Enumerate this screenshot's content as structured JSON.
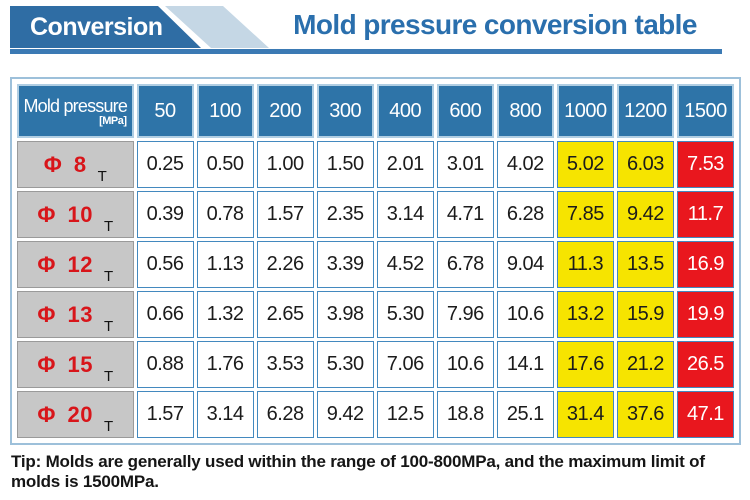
{
  "banner": {
    "label": "Conversion"
  },
  "title": "Mold pressure conversion table",
  "chart_data": {
    "type": "table",
    "title": "Mold pressure conversion table",
    "corner_header": "Mold pressure",
    "corner_unit": "[MPa]",
    "columns": [
      "50",
      "100",
      "200",
      "300",
      "400",
      "600",
      "800",
      "1000",
      "1200",
      "1500"
    ],
    "column_highlight": [
      "plain",
      "plain",
      "plain",
      "plain",
      "plain",
      "plain",
      "plain",
      "yellow",
      "yellow",
      "red"
    ],
    "rows": [
      {
        "label": "Φ 8",
        "unit": "T",
        "values": [
          "0.25",
          "0.50",
          "1.00",
          "1.50",
          "2.01",
          "3.01",
          "4.02",
          "5.02",
          "6.03",
          "7.53"
        ]
      },
      {
        "label": "Φ 10",
        "unit": "T",
        "values": [
          "0.39",
          "0.78",
          "1.57",
          "2.35",
          "3.14",
          "4.71",
          "6.28",
          "7.85",
          "9.42",
          "11.7"
        ]
      },
      {
        "label": "Φ 12",
        "unit": "T",
        "values": [
          "0.56",
          "1.13",
          "2.26",
          "3.39",
          "4.52",
          "6.78",
          "9.04",
          "11.3",
          "13.5",
          "16.9"
        ]
      },
      {
        "label": "Φ 13",
        "unit": "T",
        "values": [
          "0.66",
          "1.32",
          "2.65",
          "3.98",
          "5.30",
          "7.96",
          "10.6",
          "13.2",
          "15.9",
          "19.9"
        ]
      },
      {
        "label": "Φ 15",
        "unit": "T",
        "values": [
          "0.88",
          "1.76",
          "3.53",
          "5.30",
          "7.06",
          "10.6",
          "14.1",
          "17.6",
          "21.2",
          "26.5"
        ]
      },
      {
        "label": "Φ 20",
        "unit": "T",
        "values": [
          "1.57",
          "3.14",
          "6.28",
          "9.42",
          "12.5",
          "18.8",
          "25.1",
          "31.4",
          "37.6",
          "47.1"
        ]
      }
    ]
  },
  "tip": "Tip: Molds are generally used within the range of 100-800MPa, and the maximum limit of molds is 1500MPa.",
  "colors": {
    "banner_blue": "#2f6da4",
    "banner_light_blue": "#c5d7e5",
    "title_blue": "#2a6fad",
    "underline_blue": "#3b7ab4",
    "header_cell_blue": "#2e74a8",
    "header_bezel_blue": "#b0cee3",
    "grid_blue": "#4389bf",
    "label_gray": "#c7c7c7",
    "highlight_yellow": "#f6e400",
    "highlight_red": "#e9171e",
    "diameter_red": "#d8151a"
  }
}
